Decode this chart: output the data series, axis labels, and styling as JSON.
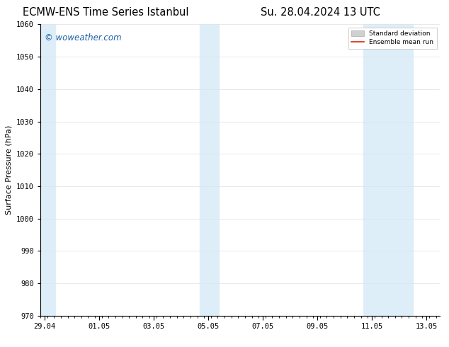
{
  "title_left": "ECMW-ENS Time Series Istanbul",
  "title_right": "Su. 28.04.2024 13 UTC",
  "ylabel": "Surface Pressure (hPa)",
  "ylim": [
    970,
    1060
  ],
  "yticks": [
    970,
    980,
    990,
    1000,
    1010,
    1020,
    1030,
    1040,
    1050,
    1060
  ],
  "x_tick_labels": [
    "29.04",
    "01.05",
    "03.05",
    "05.05",
    "07.05",
    "09.05",
    "11.05",
    "13.05"
  ],
  "x_tick_positions": [
    0,
    2,
    4,
    6,
    8,
    10,
    12,
    14
  ],
  "shaded_bands": [
    {
      "x_start": -0.15,
      "x_end": 0.4,
      "color": "#ddeef8"
    },
    {
      "x_start": 5.7,
      "x_end": 6.4,
      "color": "#ddeef8"
    },
    {
      "x_start": 11.7,
      "x_end": 13.5,
      "color": "#ddeef8"
    }
  ],
  "background_color": "#ffffff",
  "plot_bg_color": "#ffffff",
  "grid_color": "#e0e0e0",
  "watermark_text": "© woweather.com",
  "watermark_color": "#1a5fa8",
  "legend_std_color": "#d0d0d0",
  "legend_std_edge": "#aaaaaa",
  "legend_mean_color": "#dd2200",
  "title_fontsize": 10.5,
  "axis_label_fontsize": 8,
  "tick_fontsize": 7.5,
  "watermark_fontsize": 8.5
}
